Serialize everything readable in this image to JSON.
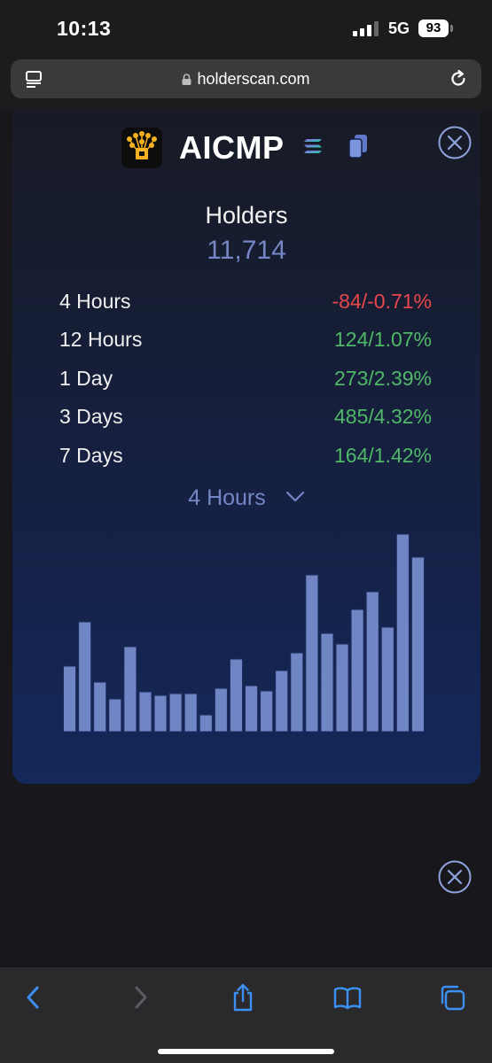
{
  "status_bar": {
    "time": "10:13",
    "network": "5G",
    "battery": "93"
  },
  "browser": {
    "url": "holderscan.com"
  },
  "token": {
    "name": "AICMP"
  },
  "holders": {
    "label": "Holders",
    "value": "11,714"
  },
  "stats": [
    {
      "period": "4 Hours",
      "value": "-84/-0.71%",
      "trend": "negative"
    },
    {
      "period": "12 Hours",
      "value": "124/1.07%",
      "trend": "positive"
    },
    {
      "period": "1 Day",
      "value": "273/2.39%",
      "trend": "positive"
    },
    {
      "period": "3 Days",
      "value": "485/4.32%",
      "trend": "positive"
    },
    {
      "period": "7 Days",
      "value": "164/1.42%",
      "trend": "positive"
    }
  ],
  "period_select": {
    "selected": "4 Hours"
  },
  "colors": {
    "negative": "#e8474b",
    "positive": "#4fb868",
    "accent": "#7486c4",
    "bar": "#7085c4",
    "toolbar_icon": "#3b8ff5"
  },
  "icons": [
    "tab-overview-icon",
    "lock-icon",
    "reload-icon",
    "token-logo",
    "solana-icon",
    "copy-icon",
    "close-icon",
    "chevron-down-icon",
    "back-icon",
    "forward-icon",
    "share-icon",
    "bookmarks-icon",
    "tabs-icon"
  ],
  "chart_data": {
    "type": "bar",
    "values": [
      74,
      124,
      56,
      37,
      96,
      45,
      41,
      43,
      43,
      19,
      49,
      82,
      52,
      46,
      69,
      89,
      177,
      111,
      99,
      138,
      158,
      118,
      223,
      197
    ],
    "ylim": [
      0,
      228
    ],
    "grid": false
  }
}
